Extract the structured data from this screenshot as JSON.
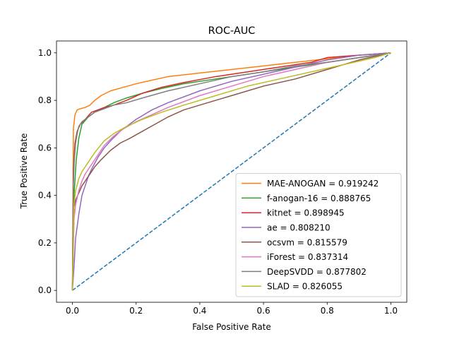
{
  "chart_data": {
    "type": "line",
    "title": "ROC-AUC",
    "xlabel": "False Positive Rate",
    "ylabel": "True Positive Rate",
    "xlim": [
      -0.05,
      1.05
    ],
    "ylim": [
      -0.05,
      1.05
    ],
    "xticks": [
      "0.0",
      "0.2",
      "0.4",
      "0.6",
      "0.8",
      "1.0"
    ],
    "yticks": [
      "0.0",
      "0.2",
      "0.4",
      "0.6",
      "0.8",
      "1.0"
    ],
    "grid": false,
    "legend_position": "lower-right",
    "series": [
      {
        "name": "MAE-ANOGAN = 0.919242",
        "color": "#ff7f0e",
        "x": [
          0,
          0.003,
          0.008,
          0.015,
          0.025,
          0.04,
          0.055,
          0.07,
          0.09,
          0.12,
          0.16,
          0.2,
          0.25,
          0.3,
          0.4,
          0.5,
          0.6,
          0.7,
          0.8,
          0.9,
          0.95,
          1.0
        ],
        "y": [
          0,
          0.68,
          0.74,
          0.76,
          0.765,
          0.77,
          0.78,
          0.8,
          0.82,
          0.84,
          0.855,
          0.87,
          0.885,
          0.9,
          0.915,
          0.93,
          0.945,
          0.96,
          0.975,
          0.99,
          0.995,
          1.0
        ]
      },
      {
        "name": "f-anogan-16 = 0.888765",
        "color": "#2ca02c",
        "x": [
          0,
          0.005,
          0.012,
          0.02,
          0.03,
          0.05,
          0.07,
          0.1,
          0.13,
          0.17,
          0.22,
          0.28,
          0.35,
          0.45,
          0.55,
          0.65,
          0.75,
          0.85,
          0.93,
          1.0
        ],
        "y": [
          0,
          0.4,
          0.55,
          0.64,
          0.7,
          0.73,
          0.75,
          0.77,
          0.79,
          0.81,
          0.83,
          0.85,
          0.87,
          0.89,
          0.91,
          0.93,
          0.95,
          0.97,
          0.985,
          1.0
        ]
      },
      {
        "name": "kitnet = 0.898945",
        "color": "#d62728",
        "x": [
          0,
          0.003,
          0.008,
          0.015,
          0.025,
          0.04,
          0.06,
          0.08,
          0.1,
          0.13,
          0.17,
          0.22,
          0.28,
          0.35,
          0.45,
          0.55,
          0.65,
          0.75,
          0.8,
          0.9,
          1.0
        ],
        "y": [
          0,
          0.5,
          0.62,
          0.67,
          0.7,
          0.72,
          0.75,
          0.76,
          0.77,
          0.78,
          0.8,
          0.83,
          0.855,
          0.875,
          0.9,
          0.92,
          0.94,
          0.96,
          0.98,
          0.99,
          1.0
        ]
      },
      {
        "name": "ae = 0.808210",
        "color": "#9467bd",
        "x": [
          0,
          0.005,
          0.01,
          0.02,
          0.03,
          0.04,
          0.05,
          0.06,
          0.08,
          0.1,
          0.12,
          0.15,
          0.2,
          0.25,
          0.3,
          0.4,
          0.5,
          0.6,
          0.7,
          0.8,
          0.9,
          1.0
        ],
        "y": [
          0,
          0.1,
          0.22,
          0.32,
          0.4,
          0.44,
          0.48,
          0.51,
          0.56,
          0.6,
          0.63,
          0.67,
          0.72,
          0.76,
          0.79,
          0.84,
          0.88,
          0.91,
          0.94,
          0.97,
          0.99,
          1.0
        ]
      },
      {
        "name": "ocsvm = 0.815579",
        "color": "#8c564b",
        "x": [
          0,
          0.005,
          0.01,
          0.02,
          0.03,
          0.05,
          0.07,
          0.09,
          0.12,
          0.15,
          0.18,
          0.22,
          0.26,
          0.3,
          0.35,
          0.4,
          0.45,
          0.5,
          0.6,
          0.7,
          0.8,
          0.9,
          1.0
        ],
        "y": [
          0,
          0.35,
          0.38,
          0.41,
          0.44,
          0.48,
          0.52,
          0.55,
          0.59,
          0.62,
          0.64,
          0.67,
          0.7,
          0.73,
          0.76,
          0.78,
          0.8,
          0.82,
          0.86,
          0.89,
          0.93,
          0.97,
          1.0
        ]
      },
      {
        "name": "iForest = 0.837314",
        "color": "#e377c2",
        "x": [
          0,
          0.005,
          0.01,
          0.02,
          0.03,
          0.04,
          0.06,
          0.08,
          0.1,
          0.13,
          0.16,
          0.2,
          0.25,
          0.3,
          0.4,
          0.5,
          0.6,
          0.7,
          0.8,
          0.9,
          1.0
        ],
        "y": [
          0,
          0.3,
          0.36,
          0.42,
          0.46,
          0.49,
          0.53,
          0.57,
          0.61,
          0.65,
          0.68,
          0.71,
          0.74,
          0.77,
          0.82,
          0.86,
          0.9,
          0.93,
          0.96,
          0.98,
          1.0
        ]
      },
      {
        "name": "DeepSVDD = 0.877802",
        "color": "#7f7f7f",
        "x": [
          0,
          0.003,
          0.006,
          0.01,
          0.015,
          0.02,
          0.03,
          0.05,
          0.07,
          0.1,
          0.13,
          0.17,
          0.22,
          0.3,
          0.4,
          0.5,
          0.6,
          0.7,
          0.8,
          0.9,
          1.0
        ],
        "y": [
          0,
          0.45,
          0.55,
          0.62,
          0.66,
          0.69,
          0.71,
          0.73,
          0.75,
          0.765,
          0.78,
          0.79,
          0.81,
          0.84,
          0.87,
          0.9,
          0.92,
          0.945,
          0.96,
          0.98,
          1.0
        ]
      },
      {
        "name": "SLAD = 0.826055",
        "color": "#bcbd22",
        "x": [
          0,
          0.005,
          0.01,
          0.02,
          0.03,
          0.05,
          0.07,
          0.1,
          0.13,
          0.17,
          0.22,
          0.28,
          0.35,
          0.45,
          0.55,
          0.65,
          0.75,
          0.85,
          0.95,
          1.0
        ],
        "y": [
          0,
          0.36,
          0.42,
          0.47,
          0.5,
          0.54,
          0.58,
          0.63,
          0.66,
          0.69,
          0.72,
          0.75,
          0.78,
          0.82,
          0.86,
          0.89,
          0.92,
          0.95,
          0.98,
          1.0
        ]
      }
    ],
    "diagonal": {
      "x": [
        0,
        1
      ],
      "y": [
        0,
        1
      ],
      "color": "#1f77b4",
      "style": "dashed"
    }
  }
}
